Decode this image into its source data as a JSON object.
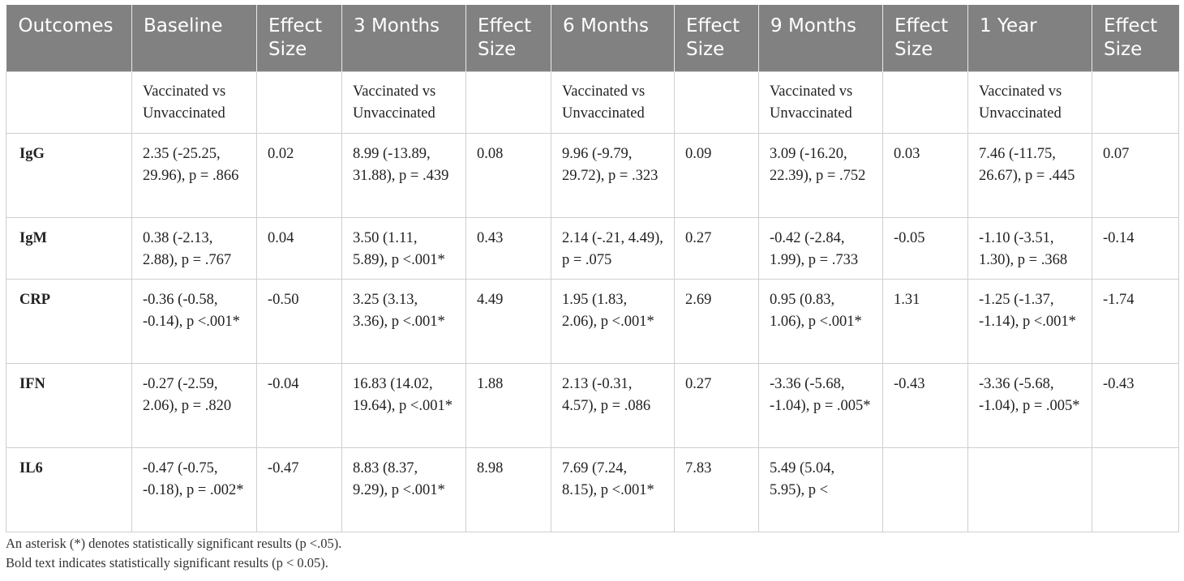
{
  "table": {
    "headers": [
      "Outcomes",
      "Baseline",
      "Effect Size",
      "3 Months",
      "Effect Size",
      "6 Months",
      "Effect Size",
      "9 Months",
      "Effect Size",
      "1 Year",
      "Effect Size"
    ],
    "subheader": [
      "",
      "Vaccinated vs Unvaccinated",
      "",
      "Vaccinated vs Unvaccinated",
      "",
      "Vaccinated vs Unvaccinated",
      "",
      "Vaccinated vs Unvaccinated",
      "",
      "Vaccinated vs Unvaccinated",
      ""
    ],
    "rows": [
      [
        "IgG",
        "2.35 (-25.25, 29.96), p = .866",
        "0.02",
        "8.99 (-13.89, 31.88), p = .439",
        "0.08",
        "9.96 (-9.79, 29.72), p = .323",
        "0.09",
        "3.09 (-16.20, 22.39), p = .752",
        "0.03",
        "7.46 (-11.75, 26.67), p = .445",
        "0.07"
      ],
      [
        "IgM",
        "0.38 (-2.13, 2.88), p = .767",
        "0.04",
        "3.50 (1.11, 5.89), p <.001*",
        "0.43",
        "2.14 (-.21, 4.49), p = .075",
        "0.27",
        "-0.42 (-2.84, 1.99), p = .733",
        "-0.05",
        "-1.10 (-3.51, 1.30), p = .368",
        "-0.14"
      ],
      [
        "CRP",
        "-0.36 (-0.58, -0.14), p <.001*",
        "-0.50",
        "3.25 (3.13, 3.36), p <.001*",
        "4.49",
        "1.95 (1.83, 2.06), p <.001*",
        "2.69",
        "0.95 (0.83, 1.06), p <.001*",
        "1.31",
        "-1.25 (-1.37, -1.14), p <.001*",
        "-1.74"
      ],
      [
        "IFN",
        "-0.27 (-2.59, 2.06), p = .820",
        "-0.04",
        "16.83 (14.02, 19.64), p <.001*",
        "1.88",
        "2.13 (-0.31, 4.57), p = .086",
        "0.27",
        "-3.36 (-5.68, -1.04), p = .005*",
        "-0.43",
        "-3.36 (-5.68, -1.04), p = .005*",
        "-0.43"
      ],
      [
        "IL6",
        "-0.47 (-0.75, -0.18), p = .002*",
        "-0.47",
        "8.83 (8.37, 9.29), p <.001*",
        "8.98",
        "7.69 (7.24, 8.15), p <.001*",
        "7.83",
        "5.49 (5.04, 5.95), p <",
        "",
        "",
        ""
      ]
    ]
  },
  "notes": [
    "An asterisk (*) denotes statistically significant results (p <.05).",
    "Bold text indicates statistically significant results (p < 0.05)."
  ]
}
